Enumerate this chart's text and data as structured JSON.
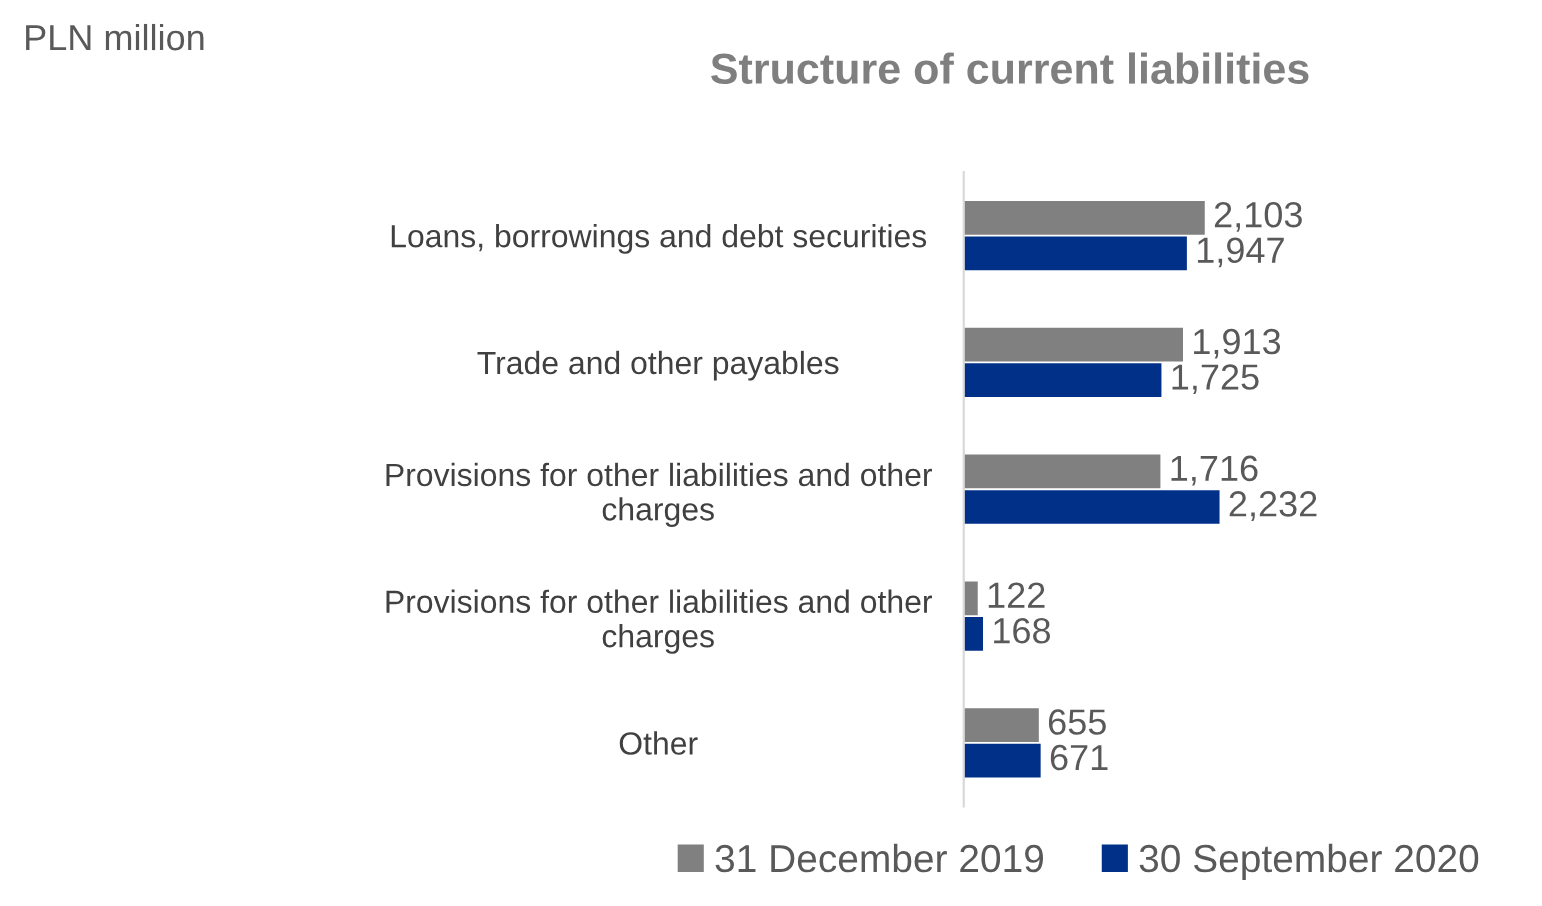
{
  "chart_data": {
    "type": "bar",
    "orientation": "horizontal",
    "title": "Structure of current liabilities",
    "categories": [
      "Loans, borrowings and debt securities",
      "Trade and other payables",
      "Provisions for other liabilities and other\ncharges",
      "Provisions for other liabilities and other\ncharges",
      "Other"
    ],
    "series": [
      {
        "name": "31 December 2019",
        "color": "#808080",
        "values": [
          2103,
          1913,
          1716,
          122,
          655
        ],
        "value_labels": [
          "2,103",
          "1,913",
          "1,716",
          "122",
          "655"
        ]
      },
      {
        "name": "30 September 2020",
        "color": "#003087",
        "values": [
          1947,
          1725,
          2232,
          168,
          671
        ],
        "value_labels": [
          "1,947",
          "1,725",
          "2,232",
          "168",
          "671"
        ]
      }
    ],
    "annotations": [
      "PLN million"
    ],
    "legend": "bottom",
    "grid": false
  }
}
